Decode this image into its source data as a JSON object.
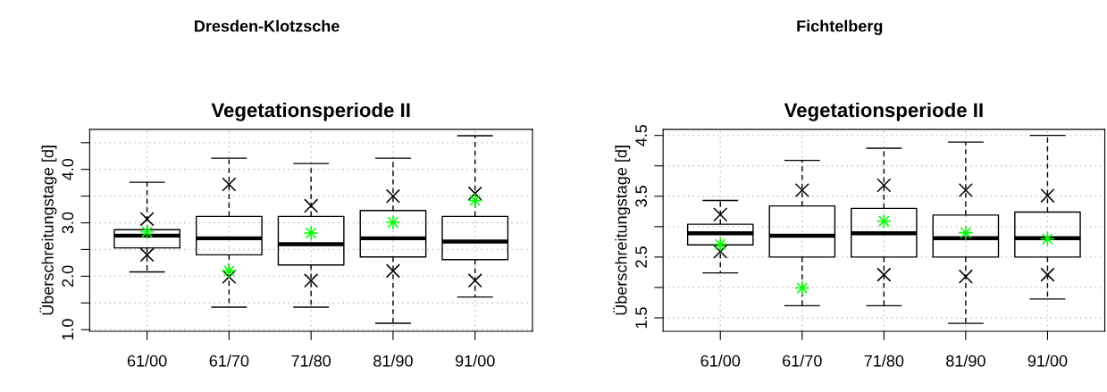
{
  "chart_data": [
    {
      "type": "box",
      "title": "Dresden-Klotzsche",
      "subtitle": "Vegetationsperiode II",
      "ylabel": "Überschreitungstage [d]",
      "categories": [
        "61/00",
        "61/70",
        "71/80",
        "81/90",
        "91/00"
      ],
      "ylim": [
        0.97,
        4.75
      ],
      "yticks": [
        {
          "value": 1,
          "label": "1.0"
        },
        {
          "value": 1.5,
          "label": null
        },
        {
          "value": 2,
          "label": "2.0"
        },
        {
          "value": 2.5,
          "label": null
        },
        {
          "value": 3,
          "label": "3.0"
        },
        {
          "value": 3.5,
          "label": null
        },
        {
          "value": 4,
          "label": "4.0"
        },
        {
          "value": 4.5,
          "label": null
        }
      ],
      "grid": true,
      "legend": false,
      "series": [
        {
          "color": "#000000",
          "line_style": "dashed",
          "boxes": [
            {
              "low": 2.08,
              "q1": 2.53,
              "median": 2.76,
              "q3": 2.87,
              "high": 3.76
            },
            {
              "low": 1.42,
              "q1": 2.4,
              "median": 2.71,
              "q3": 3.12,
              "high": 4.21
            },
            {
              "low": 1.42,
              "q1": 2.21,
              "median": 2.6,
              "q3": 3.12,
              "high": 4.11
            },
            {
              "low": 1.12,
              "q1": 2.36,
              "median": 2.71,
              "q3": 3.23,
              "high": 4.21
            },
            {
              "low": 1.61,
              "q1": 2.31,
              "median": 2.65,
              "q3": 3.12,
              "high": 4.63
            }
          ]
        },
        {
          "type": "scatter",
          "color": "#000000",
          "marker": "cross",
          "x": [
            "61/00",
            "61/70",
            "71/80",
            "81/90",
            "91/00"
          ],
          "values": [
            3.07,
            3.72,
            3.32,
            3.5,
            3.55
          ]
        },
        {
          "type": "scatter",
          "color": "#000000",
          "marker": "cross",
          "x": [
            "61/00",
            "61/70",
            "71/80",
            "81/90",
            "91/00"
          ],
          "values": [
            2.4,
            1.99,
            1.92,
            2.1,
            1.92
          ]
        },
        {
          "type": "scatter",
          "color": "#00ff00",
          "marker": "star",
          "x": [
            "61/00",
            "61/70",
            "71/80",
            "81/90",
            "91/00"
          ],
          "values": [
            2.83,
            2.1,
            2.81,
            3.01,
            3.42
          ]
        }
      ]
    },
    {
      "type": "box",
      "title": "Fichtelberg",
      "subtitle": "Vegetationsperiode II",
      "ylabel": "Überschreitungstage [d]",
      "categories": [
        "61/00",
        "61/70",
        "71/80",
        "81/90",
        "91/00"
      ],
      "ylim": [
        1.28,
        4.6
      ],
      "yticks": [
        1.5,
        {
          "value": 2.0,
          "label": null
        },
        2.5,
        {
          "value": 3.0,
          "label": null
        },
        3.5,
        {
          "value": 4.0,
          "label": null
        },
        4.5
      ],
      "grid": true,
      "legend": false,
      "series": [
        {
          "color": "#000000",
          "line_style": "dashed",
          "boxes": [
            {
              "low": 2.24,
              "q1": 2.7,
              "median": 2.89,
              "q3": 3.04,
              "high": 3.43
            },
            {
              "low": 1.7,
              "q1": 2.5,
              "median": 2.85,
              "q3": 3.34,
              "high": 4.09
            },
            {
              "low": 1.7,
              "q1": 2.5,
              "median": 2.89,
              "q3": 3.3,
              "high": 4.29
            },
            {
              "low": 1.41,
              "q1": 2.5,
              "median": 2.81,
              "q3": 3.19,
              "high": 4.39
            },
            {
              "low": 1.81,
              "q1": 2.5,
              "median": 2.81,
              "q3": 3.24,
              "high": 4.5
            }
          ]
        },
        {
          "type": "scatter",
          "color": "#000000",
          "marker": "cross",
          "x": [
            "61/00",
            "61/70",
            "71/80",
            "81/90",
            "91/00"
          ],
          "values": [
            3.2,
            3.6,
            3.68,
            3.6,
            3.51
          ]
        },
        {
          "type": "scatter",
          "color": "#000000",
          "marker": "cross",
          "x": [
            "61/00",
            "61/70",
            "71/80",
            "81/90",
            "91/00"
          ],
          "values": [
            2.59,
            null,
            2.21,
            2.18,
            2.21
          ]
        },
        {
          "type": "scatter",
          "color": "#00ff00",
          "marker": "star",
          "x": [
            "61/00",
            "61/70",
            "71/80",
            "81/90",
            "91/00"
          ],
          "values": [
            2.71,
            1.99,
            3.09,
            2.9,
            2.8
          ]
        }
      ]
    }
  ]
}
